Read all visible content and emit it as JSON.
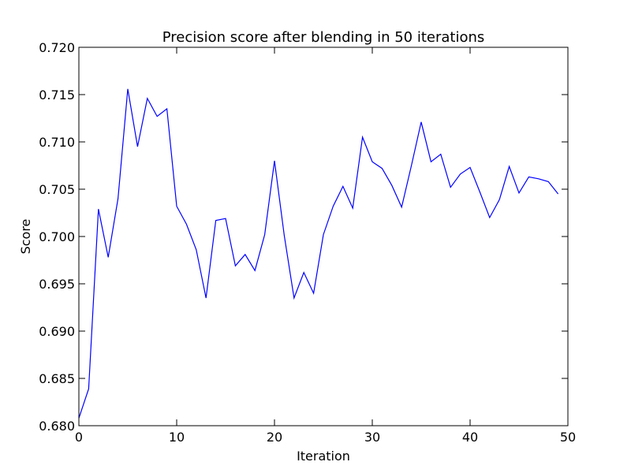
{
  "chart_data": {
    "type": "line",
    "title": "Precision score after blending in 50 iterations",
    "xlabel": "Iteration",
    "ylabel": "Score",
    "xlim": [
      0,
      50
    ],
    "ylim": [
      0.68,
      0.72
    ],
    "x_ticks": [
      "0",
      "10",
      "20",
      "30",
      "40",
      "50"
    ],
    "y_ticks": [
      "0.680",
      "0.685",
      "0.690",
      "0.695",
      "0.700",
      "0.705",
      "0.710",
      "0.715",
      "0.720"
    ],
    "grid": false,
    "legend": "none",
    "line_color": "#0000ff",
    "series": [
      {
        "x": [
          0,
          1,
          2,
          3,
          4,
          5,
          6,
          7,
          8,
          9,
          10,
          11,
          12,
          13,
          14,
          15,
          16,
          17,
          18,
          19,
          20,
          21,
          22,
          23,
          24,
          25,
          26,
          27,
          28,
          29,
          30,
          31,
          32,
          33,
          34,
          35,
          36,
          37,
          38,
          39,
          40,
          41,
          42,
          43,
          44,
          45,
          46,
          47,
          48,
          49
        ],
        "values": [
          0.6808,
          0.6839,
          0.7029,
          0.6978,
          0.704,
          0.7156,
          0.7095,
          0.7146,
          0.7127,
          0.7135,
          0.7032,
          0.7013,
          0.6986,
          0.6935,
          0.7017,
          0.7019,
          0.6969,
          0.6981,
          0.6964,
          0.7002,
          0.708,
          0.7001,
          0.6935,
          0.6962,
          0.694,
          0.7002,
          0.7032,
          0.7053,
          0.703,
          0.7105,
          0.7079,
          0.7072,
          0.7054,
          0.7031,
          0.7075,
          0.7121,
          0.7079,
          0.7087,
          0.7052,
          0.7066,
          0.7073,
          0.7047,
          0.702,
          0.7039,
          0.7074,
          0.7046,
          0.7063,
          0.7061,
          0.7058,
          0.7045
        ]
      }
    ]
  }
}
